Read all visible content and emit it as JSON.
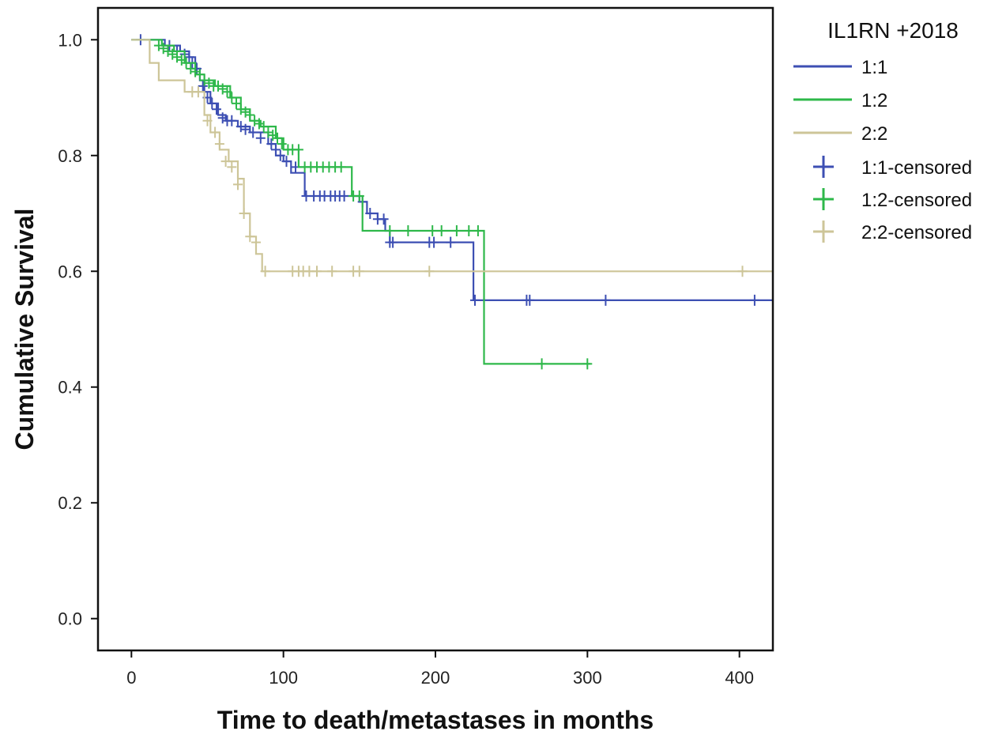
{
  "chart_data": {
    "type": "line",
    "subtype": "kaplan-meier",
    "title": "",
    "xlabel": "Time to death/metastases in months",
    "ylabel": "Cumulative Survival",
    "xlim": [
      -22,
      422
    ],
    "ylim": [
      -0.055,
      1.055
    ],
    "xticks": [
      0,
      100,
      200,
      300,
      400
    ],
    "yticks": [
      0.0,
      0.2,
      0.4,
      0.6,
      0.8,
      1.0
    ],
    "xtick_labels": [
      "0",
      "100",
      "200",
      "300",
      "400"
    ],
    "ytick_labels": [
      "0.0",
      "0.2",
      "0.4",
      "0.6",
      "0.8",
      "1.0"
    ],
    "grid": false,
    "legend": {
      "title": "IL1RN +2018",
      "position": "right",
      "entries": [
        {
          "label": "1:1",
          "kind": "line",
          "color": "#3D4FB3"
        },
        {
          "label": "1:2",
          "kind": "line",
          "color": "#2EB84A"
        },
        {
          "label": "2:2",
          "kind": "line",
          "color": "#CDC598"
        },
        {
          "label": "1:1-censored",
          "kind": "marker",
          "color": "#3D4FB3"
        },
        {
          "label": "1:2-censored",
          "kind": "marker",
          "color": "#2EB84A"
        },
        {
          "label": "2:2-censored",
          "kind": "marker",
          "color": "#CDC598"
        }
      ]
    },
    "series": [
      {
        "name": "1:1",
        "color": "#3D4FB3",
        "steps": [
          [
            0,
            1.0
          ],
          [
            22,
            0.99
          ],
          [
            32,
            0.98
          ],
          [
            38,
            0.97
          ],
          [
            42,
            0.95
          ],
          [
            45,
            0.93
          ],
          [
            48,
            0.91
          ],
          [
            52,
            0.89
          ],
          [
            57,
            0.87
          ],
          [
            62,
            0.86
          ],
          [
            70,
            0.85
          ],
          [
            78,
            0.84
          ],
          [
            90,
            0.82
          ],
          [
            95,
            0.8
          ],
          [
            100,
            0.79
          ],
          [
            105,
            0.77
          ],
          [
            114,
            0.73
          ],
          [
            150,
            0.72
          ],
          [
            155,
            0.7
          ],
          [
            162,
            0.69
          ],
          [
            167,
            0.67
          ],
          [
            170,
            0.65
          ],
          [
            225,
            0.55
          ],
          [
            422,
            0.55
          ]
        ],
        "censored": [
          [
            6,
            1.0
          ],
          [
            25,
            0.99
          ],
          [
            30,
            0.98
          ],
          [
            35,
            0.975
          ],
          [
            38,
            0.97
          ],
          [
            40,
            0.96
          ],
          [
            43,
            0.95
          ],
          [
            47,
            0.92
          ],
          [
            50,
            0.9
          ],
          [
            53,
            0.89
          ],
          [
            56,
            0.88
          ],
          [
            60,
            0.865
          ],
          [
            63,
            0.86
          ],
          [
            66,
            0.86
          ],
          [
            72,
            0.85
          ],
          [
            75,
            0.845
          ],
          [
            80,
            0.84
          ],
          [
            85,
            0.83
          ],
          [
            92,
            0.82
          ],
          [
            95,
            0.81
          ],
          [
            98,
            0.8
          ],
          [
            102,
            0.79
          ],
          [
            108,
            0.78
          ],
          [
            115,
            0.73
          ],
          [
            120,
            0.73
          ],
          [
            124,
            0.73
          ],
          [
            127,
            0.73
          ],
          [
            131,
            0.73
          ],
          [
            134,
            0.73
          ],
          [
            137,
            0.73
          ],
          [
            140,
            0.73
          ],
          [
            152,
            0.72
          ],
          [
            157,
            0.7
          ],
          [
            162,
            0.69
          ],
          [
            166,
            0.69
          ],
          [
            170,
            0.65
          ],
          [
            172,
            0.65
          ],
          [
            196,
            0.65
          ],
          [
            199,
            0.65
          ],
          [
            210,
            0.65
          ],
          [
            226,
            0.55
          ],
          [
            260,
            0.55
          ],
          [
            262,
            0.55
          ],
          [
            312,
            0.55
          ],
          [
            410,
            0.55
          ]
        ]
      },
      {
        "name": "1:2",
        "color": "#2EB84A",
        "steps": [
          [
            0,
            1.0
          ],
          [
            20,
            0.99
          ],
          [
            28,
            0.98
          ],
          [
            35,
            0.96
          ],
          [
            42,
            0.94
          ],
          [
            48,
            0.93
          ],
          [
            55,
            0.92
          ],
          [
            65,
            0.9
          ],
          [
            72,
            0.88
          ],
          [
            78,
            0.86
          ],
          [
            85,
            0.85
          ],
          [
            95,
            0.83
          ],
          [
            100,
            0.81
          ],
          [
            110,
            0.78
          ],
          [
            145,
            0.73
          ],
          [
            152,
            0.67
          ],
          [
            232,
            0.44
          ],
          [
            302,
            0.44
          ]
        ],
        "censored": [
          [
            18,
            0.99
          ],
          [
            21,
            0.985
          ],
          [
            24,
            0.98
          ],
          [
            27,
            0.975
          ],
          [
            30,
            0.97
          ],
          [
            33,
            0.965
          ],
          [
            36,
            0.96
          ],
          [
            39,
            0.95
          ],
          [
            42,
            0.945
          ],
          [
            45,
            0.94
          ],
          [
            48,
            0.93
          ],
          [
            51,
            0.925
          ],
          [
            54,
            0.92
          ],
          [
            57,
            0.92
          ],
          [
            60,
            0.915
          ],
          [
            63,
            0.91
          ],
          [
            66,
            0.9
          ],
          [
            69,
            0.89
          ],
          [
            72,
            0.88
          ],
          [
            75,
            0.875
          ],
          [
            78,
            0.87
          ],
          [
            81,
            0.86
          ],
          [
            84,
            0.855
          ],
          [
            87,
            0.85
          ],
          [
            90,
            0.84
          ],
          [
            93,
            0.835
          ],
          [
            96,
            0.83
          ],
          [
            99,
            0.82
          ],
          [
            103,
            0.81
          ],
          [
            106,
            0.81
          ],
          [
            110,
            0.81
          ],
          [
            114,
            0.78
          ],
          [
            118,
            0.78
          ],
          [
            122,
            0.78
          ],
          [
            126,
            0.78
          ],
          [
            130,
            0.78
          ],
          [
            134,
            0.78
          ],
          [
            138,
            0.78
          ],
          [
            146,
            0.73
          ],
          [
            150,
            0.73
          ],
          [
            170,
            0.67
          ],
          [
            182,
            0.67
          ],
          [
            198,
            0.67
          ],
          [
            204,
            0.67
          ],
          [
            214,
            0.67
          ],
          [
            222,
            0.67
          ],
          [
            228,
            0.67
          ],
          [
            270,
            0.44
          ],
          [
            300,
            0.44
          ]
        ]
      },
      {
        "name": "2:2",
        "color": "#CDC598",
        "steps": [
          [
            0,
            1.0
          ],
          [
            12,
            0.96
          ],
          [
            18,
            0.93
          ],
          [
            35,
            0.91
          ],
          [
            48,
            0.87
          ],
          [
            52,
            0.84
          ],
          [
            58,
            0.81
          ],
          [
            64,
            0.79
          ],
          [
            70,
            0.76
          ],
          [
            74,
            0.7
          ],
          [
            78,
            0.66
          ],
          [
            82,
            0.63
          ],
          [
            86,
            0.6
          ],
          [
            422,
            0.6
          ]
        ],
        "censored": [
          [
            40,
            0.91
          ],
          [
            44,
            0.91
          ],
          [
            50,
            0.86
          ],
          [
            55,
            0.84
          ],
          [
            58,
            0.82
          ],
          [
            62,
            0.79
          ],
          [
            66,
            0.78
          ],
          [
            70,
            0.75
          ],
          [
            74,
            0.7
          ],
          [
            78,
            0.66
          ],
          [
            82,
            0.65
          ],
          [
            88,
            0.6
          ],
          [
            106,
            0.6
          ],
          [
            110,
            0.6
          ],
          [
            113,
            0.6
          ],
          [
            117,
            0.6
          ],
          [
            122,
            0.6
          ],
          [
            132,
            0.6
          ],
          [
            146,
            0.6
          ],
          [
            150,
            0.6
          ],
          [
            196,
            0.6
          ],
          [
            402,
            0.6
          ]
        ]
      }
    ]
  }
}
